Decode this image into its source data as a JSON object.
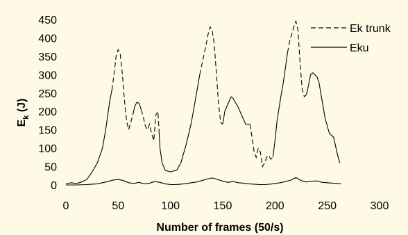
{
  "chart_data": {
    "type": "line",
    "title": "",
    "xlabel": "Number of frames (50/s)",
    "ylabel_main": "E",
    "ylabel_sub": "k",
    "ylabel_unit": " (J)",
    "xlim": [
      0,
      300
    ],
    "ylim": [
      0,
      450
    ],
    "xticks": [
      0,
      50,
      100,
      150,
      200,
      250,
      300
    ],
    "yticks": [
      0,
      50,
      100,
      150,
      200,
      250,
      300,
      350,
      400,
      450
    ],
    "grid": false,
    "legend_position": "top-right",
    "background": "#fefae6",
    "series": [
      {
        "name": "Ek trunk",
        "style": "solid-dashed",
        "color": "#000000",
        "segments": [
          {
            "dash": false,
            "x": [
              0,
              5,
              10,
              15,
              20,
              25,
              30,
              35,
              38,
              40,
              42,
              44
            ],
            "y": [
              3,
              6,
              4,
              8,
              15,
              35,
              60,
              100,
              150,
              190,
              230,
              258
            ]
          },
          {
            "dash": true,
            "x": [
              44,
              46,
              48,
              50,
              52,
              54,
              56,
              58,
              60,
              62,
              64
            ],
            "y": [
              258,
              300,
              350,
              368,
              355,
              300,
              230,
              175,
              150,
              170,
              190
            ]
          },
          {
            "dash": false,
            "x": [
              64,
              66,
              68,
              70,
              72
            ],
            "y": [
              190,
              215,
              225,
              222,
              205
            ]
          },
          {
            "dash": true,
            "x": [
              72,
              74,
              76,
              78,
              80,
              82,
              84,
              86,
              88,
              89
            ],
            "y": [
              205,
              185,
              160,
              150,
              165,
              140,
              120,
              190,
              200,
              150
            ]
          },
          {
            "dash": false,
            "x": [
              89,
              90,
              92,
              95,
              98,
              100,
              103,
              106,
              110,
              115,
              120,
              125,
              128
            ],
            "y": [
              150,
              100,
              60,
              40,
              37,
              36,
              38,
              40,
              60,
              110,
              170,
              250,
              300
            ]
          },
          {
            "dash": true,
            "x": [
              128,
              131,
              134,
              136,
              138,
              140,
              142,
              144,
              146,
              148,
              150
            ],
            "y": [
              300,
              340,
              380,
              410,
              430,
              420,
              380,
              300,
              220,
              170,
              165
            ]
          },
          {
            "dash": false,
            "x": [
              150,
              152,
              155,
              158,
              160,
              162,
              165,
              168,
              172,
              176
            ],
            "y": [
              165,
              200,
              220,
              240,
              235,
              225,
              210,
              190,
              165,
              165
            ]
          },
          {
            "dash": true,
            "x": [
              176,
              178,
              180,
              182,
              184,
              186,
              188,
              190,
              192,
              194,
              196,
              198
            ],
            "y": [
              165,
              130,
              90,
              75,
              100,
              90,
              50,
              60,
              75,
              80,
              70,
              75
            ]
          },
          {
            "dash": false,
            "x": [
              198,
              200,
              202,
              205,
              208,
              210,
              212
            ],
            "y": [
              75,
              120,
              175,
              230,
              280,
              320,
              360
            ]
          },
          {
            "dash": true,
            "x": [
              212,
              214,
              216,
              218,
              220,
              222,
              224,
              226,
              228,
              230
            ],
            "y": [
              360,
              390,
              410,
              430,
              445,
              420,
              330,
              260,
              240,
              245
            ]
          },
          {
            "dash": false,
            "x": [
              230,
              232,
              234,
              236,
              238,
              240,
              242,
              245,
              248,
              252,
              256,
              260,
              262
            ],
            "y": [
              245,
              270,
              300,
              305,
              300,
              295,
              280,
              230,
              180,
              140,
              130,
              80,
              60
            ]
          }
        ]
      },
      {
        "name": "Eku",
        "style": "solid",
        "color": "#000000",
        "x": [
          0,
          10,
          20,
          30,
          35,
          40,
          45,
          50,
          55,
          60,
          65,
          70,
          75,
          80,
          85,
          90,
          95,
          100,
          105,
          110,
          115,
          120,
          125,
          130,
          135,
          140,
          145,
          150,
          155,
          160,
          165,
          170,
          175,
          180,
          185,
          190,
          195,
          200,
          205,
          210,
          215,
          220,
          225,
          230,
          235,
          240,
          245,
          250,
          255,
          260,
          263
        ],
        "y": [
          0,
          0,
          1,
          3,
          6,
          9,
          13,
          15,
          12,
          6,
          4,
          7,
          3,
          5,
          9,
          7,
          3,
          1,
          1,
          2,
          4,
          6,
          8,
          12,
          16,
          19,
          15,
          10,
          7,
          9,
          6,
          5,
          3,
          2,
          1,
          1,
          2,
          4,
          6,
          9,
          13,
          20,
          12,
          8,
          10,
          11,
          7,
          6,
          5,
          4,
          3
        ]
      }
    ]
  }
}
